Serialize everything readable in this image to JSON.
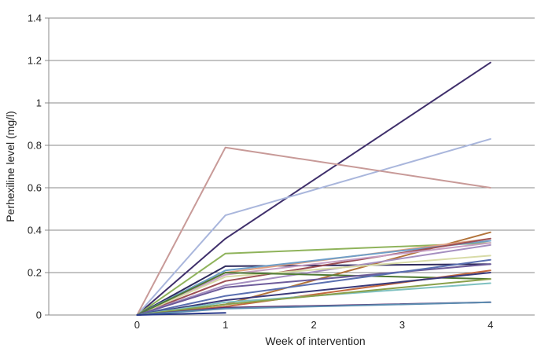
{
  "chart_data": {
    "type": "line",
    "xlabel": "Week of intervention",
    "ylabel": "Perhexiline level (mg/l)",
    "x": [
      0,
      1,
      4
    ],
    "xticks": [
      0,
      1,
      2,
      3,
      4
    ],
    "xlim": [
      -1,
      4.5
    ],
    "ylim": [
      0,
      1.4
    ],
    "yticks": [
      0,
      0.2,
      0.4,
      0.6,
      0.8,
      1,
      1.2,
      1.4
    ],
    "ytick_labels": [
      "0",
      "0.2",
      "0.4",
      "0.6",
      "0.8",
      "1",
      "1.2",
      "1.4"
    ],
    "grid": "horizontal",
    "legend": "none",
    "series": [
      {
        "color": "#3f2f6b",
        "values": [
          0,
          0.36,
          1.19
        ]
      },
      {
        "color": "#a9b6dc",
        "values": [
          0,
          0.47,
          0.83
        ]
      },
      {
        "color": "#c89a98",
        "values": [
          0,
          0.79,
          0.6
        ]
      },
      {
        "color": "#8fb35b",
        "values": [
          0,
          0.29,
          0.34
        ]
      },
      {
        "color": "#b2733a",
        "values": [
          0,
          0.05,
          0.39
        ]
      },
      {
        "color": "#2f2b5e",
        "values": [
          0,
          0.23,
          0.24
        ]
      },
      {
        "color": "#e0a080",
        "values": [
          0,
          0.2,
          0.36
        ]
      },
      {
        "color": "#6f9fc8",
        "values": [
          0,
          0.21,
          0.35
        ]
      },
      {
        "color": "#9c4f55",
        "values": [
          0,
          0.16,
          0.36
        ]
      },
      {
        "color": "#c7a0c4",
        "values": [
          0,
          0.19,
          0.34
        ]
      },
      {
        "color": "#a58fc0",
        "values": [
          0,
          0.14,
          0.33
        ]
      },
      {
        "color": "#d8dba7",
        "values": [
          0,
          0.18,
          0.28
        ]
      },
      {
        "color": "#4f7a34",
        "values": [
          0,
          0.2,
          0.17
        ]
      },
      {
        "color": "#6d5b9a",
        "values": [
          0,
          0.13,
          0.24
        ]
      },
      {
        "color": "#5a6fb0",
        "values": [
          0,
          0.09,
          0.26
        ]
      },
      {
        "color": "#c46a40",
        "values": [
          0,
          0.04,
          0.21
        ]
      },
      {
        "color": "#3a3a7a",
        "values": [
          0,
          0.07,
          0.2
        ]
      },
      {
        "color": "#7ec0c0",
        "values": [
          0,
          0.06,
          0.15
        ]
      },
      {
        "color": "#8aa04a",
        "values": [
          0,
          0.05,
          0.17
        ]
      },
      {
        "color": "#5b2d6e",
        "values": [
          0,
          0.035,
          0.06
        ]
      },
      {
        "color": "#5c8cb0",
        "values": [
          0,
          0.03,
          0.06
        ]
      },
      {
        "color": "#2a3a8a",
        "values": [
          0,
          0.01,
          null
        ]
      }
    ]
  }
}
